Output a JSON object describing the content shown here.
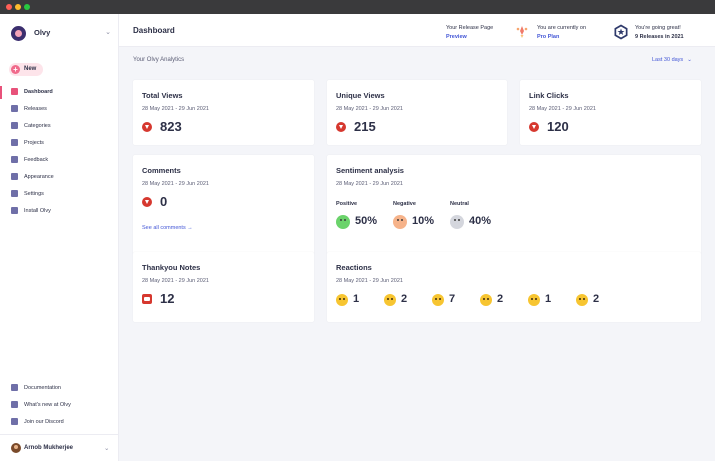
{
  "window": {
    "controls": [
      {
        "name": "close",
        "color": "#ff5f57"
      },
      {
        "name": "minimize",
        "color": "#febc2e"
      },
      {
        "name": "maximize",
        "color": "#28c840"
      }
    ]
  },
  "sidebar": {
    "brand_name": "Olvy",
    "new_label": "New",
    "items": [
      {
        "label": "Dashboard",
        "icon": "dashboard-icon",
        "active": true
      },
      {
        "label": "Releases",
        "icon": "releases-icon"
      },
      {
        "label": "Categories",
        "icon": "tag-icon"
      },
      {
        "label": "Projects",
        "icon": "projects-icon"
      },
      {
        "label": "Feedback",
        "icon": "chat-icon"
      },
      {
        "label": "Appearance",
        "icon": "appearance-icon"
      },
      {
        "label": "Settings",
        "icon": "gear-icon"
      },
      {
        "label": "Install Olvy",
        "icon": "install-icon"
      }
    ],
    "footer_links": [
      {
        "label": "Documentation",
        "icon": "document-icon"
      },
      {
        "label": "What's new at Olvy",
        "icon": "gift-icon"
      },
      {
        "label": "Join our Discord",
        "icon": "discord-icon"
      }
    ],
    "user_name": "Arnob Mukherjee"
  },
  "header": {
    "title": "Dashboard",
    "release_page_label": "Your Release Page",
    "release_page_link": "Preview",
    "plan_label": "You are currently on",
    "plan_link": "Pro Plan",
    "status_label": "You're going great!",
    "status_value": "9 Releases in 2021"
  },
  "analytics": {
    "section_label": "Your Olvy Analytics",
    "range_label": "Last 30 days",
    "date_range": "28 May 2021 - 29 Jun 2021",
    "total_views": {
      "title": "Total Views",
      "value": "823",
      "trend": "down"
    },
    "unique_views": {
      "title": "Unique Views",
      "value": "215",
      "trend": "down"
    },
    "link_clicks": {
      "title": "Link Clicks",
      "value": "120",
      "trend": "down"
    },
    "comments": {
      "title": "Comments",
      "value": "0",
      "trend": "down",
      "see_all": "See all comments →"
    },
    "sentiment": {
      "title": "Sentiment analysis",
      "items": [
        {
          "label": "Positive",
          "value": "50%",
          "color": "#6bd36b"
        },
        {
          "label": "Negative",
          "value": "10%",
          "color": "#f6b38a"
        },
        {
          "label": "Neutral",
          "value": "40%",
          "color": "#d4d6dd"
        }
      ]
    },
    "thankyou_notes": {
      "title": "Thankyou Notes",
      "value": "12"
    },
    "reactions": {
      "title": "Reactions",
      "items": [
        {
          "icon": "cool-face-icon",
          "value": "1"
        },
        {
          "icon": "thinking-face-icon",
          "value": "2"
        },
        {
          "icon": "smirk-face-icon",
          "value": "7"
        },
        {
          "icon": "party-face-icon",
          "value": "2"
        },
        {
          "icon": "heart-face-icon",
          "value": "1"
        },
        {
          "icon": "wink-face-icon",
          "value": "2"
        }
      ]
    }
  }
}
